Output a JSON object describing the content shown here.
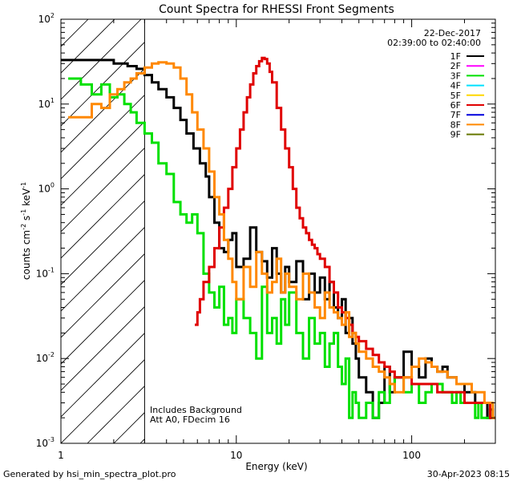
{
  "chart_data": {
    "type": "line",
    "title": "Count Spectra for RHESSI Front Segments",
    "xlabel": "Energy (keV)",
    "ylabel": {
      "base": "counts cm",
      "exp1": "-2",
      "mid1": " s",
      "exp2": "-1",
      "mid2": " keV",
      "exp3": "-1"
    },
    "x_scale": "log",
    "y_scale": "log",
    "xlim": [
      1,
      300
    ],
    "ylim": [
      0.001,
      100
    ],
    "x_ticks": [
      {
        "value": 1,
        "label": "1"
      },
      {
        "value": 10,
        "label": "10"
      },
      {
        "value": 100,
        "label": "100"
      }
    ],
    "y_ticks": [
      {
        "value": 100,
        "base": "10",
        "exp": "2"
      },
      {
        "value": 10,
        "base": "10",
        "exp": "1"
      },
      {
        "value": 1,
        "base": "10",
        "exp": "0"
      },
      {
        "value": 0.1,
        "base": "10",
        "exp": "-1"
      },
      {
        "value": 0.01,
        "base": "10",
        "exp": "-2"
      },
      {
        "value": 0.001,
        "base": "10",
        "exp": "-3"
      }
    ],
    "shaded_region": {
      "xmin": 1,
      "xmax": 3,
      "style": "diagonal hatch"
    },
    "date": "22-Dec-2017",
    "time_range": "02:39:00 to 02:40:00",
    "annotations": [
      "Includes Background",
      "Att A0, FDecim 16"
    ],
    "legend": [
      {
        "name": "1F",
        "color": "#000000"
      },
      {
        "name": "2F",
        "color": "#ff00ff"
      },
      {
        "name": "3F",
        "color": "#00e000"
      },
      {
        "name": "4F",
        "color": "#00e0ff"
      },
      {
        "name": "5F",
        "color": "#ffd700"
      },
      {
        "name": "6F",
        "color": "#e00000"
      },
      {
        "name": "7F",
        "color": "#0000dd"
      },
      {
        "name": "8F",
        "color": "#ff8800"
      },
      {
        "name": "9F",
        "color": "#667700"
      }
    ],
    "series": [
      {
        "name": "1F",
        "color": "#000000",
        "x": [
          1.0,
          2.0,
          2.4,
          2.7,
          3.0,
          3.3,
          3.6,
          4.0,
          4.4,
          4.8,
          5.2,
          5.7,
          6.2,
          6.7,
          7.0,
          7.5,
          8.0,
          8.5,
          9.0,
          9.5,
          10.0,
          11.0,
          12.0,
          13.0,
          14.0,
          15.0,
          16.0,
          17.0,
          18.0,
          19.0,
          20.0,
          22.0,
          24.0,
          26.0,
          28.0,
          30.0,
          32.0,
          34.0,
          36.0,
          38.0,
          40.0,
          42.0,
          44.0,
          46.0,
          48.0,
          50.0,
          55.0,
          60.0,
          65.0,
          70.0,
          75.0,
          80.0,
          90.0,
          100.0,
          110.0,
          120.0,
          130.0,
          140.0,
          150.0,
          160.0,
          170.0,
          180.0,
          190.0,
          200.0,
          210.0,
          220.0,
          230.0,
          240.0,
          250.0,
          260.0,
          270.0,
          280.0,
          290.0,
          300.0
        ],
        "y": [
          33,
          30,
          28,
          26,
          22,
          18,
          15,
          12,
          9,
          6.5,
          4.5,
          3,
          2,
          1.4,
          0.8,
          0.4,
          0.2,
          0.18,
          0.25,
          0.3,
          0.12,
          0.15,
          0.35,
          0.18,
          0.14,
          0.09,
          0.2,
          0.1,
          0.06,
          0.12,
          0.08,
          0.14,
          0.05,
          0.1,
          0.06,
          0.09,
          0.05,
          0.08,
          0.04,
          0.03,
          0.05,
          0.02,
          0.03,
          0.015,
          0.01,
          0.006,
          0.004,
          0.002,
          0.003,
          0.008,
          0.004,
          0.006,
          0.012,
          0.008,
          0.006,
          0.01,
          0.008,
          0.007,
          0.008,
          0.006,
          0.006,
          0.005,
          0.005,
          0.004,
          0.004,
          0.004,
          0.003,
          0.003,
          0.003,
          0.003,
          0.002,
          0.0025,
          0.002,
          0.002
        ]
      },
      {
        "name": "3F",
        "color": "#00e000",
        "x": [
          1.1,
          1.3,
          1.5,
          1.7,
          1.9,
          2.1,
          2.3,
          2.5,
          2.7,
          3.0,
          3.3,
          3.6,
          4.0,
          4.4,
          4.8,
          5.2,
          5.6,
          6.0,
          6.5,
          7.0,
          7.5,
          8.0,
          8.5,
          9.0,
          9.5,
          10.0,
          11.0,
          12.0,
          13.0,
          14.0,
          15.0,
          16.0,
          17.0,
          18.0,
          19.0,
          20.0,
          22.0,
          24.0,
          26.0,
          28.0,
          30.0,
          32.0,
          34.0,
          36.0,
          38.0,
          40.0,
          42.0,
          44.0,
          46.0,
          48.0,
          50.0,
          55.0,
          60.0,
          65.0,
          70.0,
          75.0,
          80.0,
          90.0,
          100.0,
          110.0,
          120.0,
          130.0,
          140.0,
          150.0,
          160.0,
          170.0,
          180.0,
          190.0,
          200.0,
          210.0,
          220.0,
          230.0,
          240.0,
          250.0,
          260.0,
          270.0,
          280.0,
          290.0,
          300.0
        ],
        "y": [
          20,
          17,
          13,
          17,
          12,
          13,
          10,
          8,
          6,
          4.5,
          3.5,
          2,
          1.5,
          0.7,
          0.5,
          0.4,
          0.5,
          0.3,
          0.1,
          0.06,
          0.04,
          0.07,
          0.025,
          0.03,
          0.02,
          0.05,
          0.03,
          0.02,
          0.01,
          0.07,
          0.02,
          0.03,
          0.015,
          0.05,
          0.025,
          0.06,
          0.02,
          0.01,
          0.03,
          0.015,
          0.02,
          0.008,
          0.015,
          0.02,
          0.008,
          0.005,
          0.01,
          0.002,
          0.004,
          0.003,
          0.002,
          0.003,
          0.002,
          0.004,
          0.003,
          0.005,
          0.006,
          0.004,
          0.005,
          0.003,
          0.004,
          0.005,
          0.005,
          0.004,
          0.004,
          0.003,
          0.004,
          0.003,
          0.003,
          0.003,
          0.003,
          0.002,
          0.003,
          0.002,
          0.002,
          0.002,
          0.002,
          0.002,
          0.002
        ]
      },
      {
        "name": "6F",
        "color": "#e00000",
        "x": [
          5.8,
          6.0,
          6.2,
          6.5,
          7.0,
          7.5,
          8.0,
          8.5,
          9.0,
          9.5,
          10.0,
          10.5,
          11.0,
          11.5,
          12.0,
          12.5,
          13.0,
          13.5,
          14.0,
          14.5,
          15.0,
          15.5,
          16.0,
          17.0,
          18.0,
          19.0,
          20.0,
          21.0,
          22.0,
          23.0,
          24.0,
          25.0,
          26.0,
          27.0,
          28.0,
          29.0,
          30.0,
          32.0,
          34.0,
          36.0,
          38.0,
          40.0,
          42.0,
          44.0,
          46.0,
          48.0,
          50.0,
          55.0,
          60.0,
          65.0,
          70.0,
          75.0,
          80.0,
          90.0,
          100.0,
          110.0,
          120.0,
          130.0,
          140.0,
          150.0,
          160.0,
          170.0,
          180.0,
          190.0,
          200.0,
          210.0,
          220.0,
          230.0,
          240.0,
          250.0,
          260.0,
          270.0,
          280.0,
          290.0,
          300.0
        ],
        "y": [
          0.025,
          0.035,
          0.05,
          0.08,
          0.12,
          0.2,
          0.35,
          0.6,
          1,
          1.8,
          3,
          5,
          8,
          12,
          17,
          23,
          28,
          32,
          35,
          34,
          30,
          24,
          18,
          9,
          5,
          3,
          1.8,
          1,
          0.6,
          0.45,
          0.35,
          0.3,
          0.25,
          0.22,
          0.2,
          0.17,
          0.15,
          0.12,
          0.08,
          0.06,
          0.04,
          0.035,
          0.03,
          0.025,
          0.02,
          0.018,
          0.016,
          0.013,
          0.011,
          0.009,
          0.008,
          0.007,
          0.006,
          0.006,
          0.005,
          0.005,
          0.005,
          0.005,
          0.004,
          0.004,
          0.004,
          0.004,
          0.004,
          0.004,
          0.003,
          0.003,
          0.003,
          0.003,
          0.003,
          0.003,
          0.003,
          0.003,
          0.002,
          0.002,
          0.002
        ]
      },
      {
        "name": "8F",
        "color": "#ff8800",
        "x": [
          1.1,
          1.3,
          1.5,
          1.7,
          1.9,
          2.1,
          2.3,
          2.5,
          2.7,
          3.0,
          3.3,
          3.6,
          4.0,
          4.4,
          4.8,
          5.2,
          5.6,
          6.0,
          6.5,
          7.0,
          7.5,
          8.0,
          8.5,
          9.0,
          9.5,
          10.0,
          11.0,
          12.0,
          13.0,
          14.0,
          15.0,
          16.0,
          17.0,
          18.0,
          19.0,
          20.0,
          22.0,
          24.0,
          26.0,
          28.0,
          30.0,
          32.0,
          34.0,
          36.0,
          38.0,
          40.0,
          42.0,
          44.0,
          46.0,
          48.0,
          50.0,
          55.0,
          60.0,
          65.0,
          70.0,
          75.0,
          80.0,
          90.0,
          100.0,
          110.0,
          120.0,
          130.0,
          140.0,
          150.0,
          160.0,
          170.0,
          180.0,
          190.0,
          200.0,
          210.0,
          220.0,
          230.0,
          240.0,
          250.0,
          260.0,
          270.0,
          280.0,
          290.0,
          300.0
        ],
        "y": [
          7,
          7,
          10,
          9,
          13,
          15,
          18,
          20,
          23,
          27,
          30,
          31,
          30,
          27,
          20,
          13,
          8,
          5,
          3,
          1.6,
          0.8,
          0.5,
          0.25,
          0.15,
          0.08,
          0.05,
          0.12,
          0.07,
          0.18,
          0.1,
          0.06,
          0.08,
          0.15,
          0.06,
          0.1,
          0.07,
          0.05,
          0.1,
          0.06,
          0.04,
          0.03,
          0.06,
          0.04,
          0.035,
          0.03,
          0.025,
          0.035,
          0.018,
          0.02,
          0.015,
          0.012,
          0.01,
          0.008,
          0.007,
          0.006,
          0.005,
          0.004,
          0.006,
          0.008,
          0.01,
          0.009,
          0.008,
          0.007,
          0.007,
          0.006,
          0.006,
          0.005,
          0.005,
          0.005,
          0.005,
          0.004,
          0.004,
          0.004,
          0.004,
          0.003,
          0.003,
          0.003,
          0.002,
          0.002
        ]
      }
    ]
  },
  "footer": {
    "generated_by": "Generated by hsi_min_spectra_plot.pro",
    "timestamp": "30-Apr-2023 08:15"
  }
}
